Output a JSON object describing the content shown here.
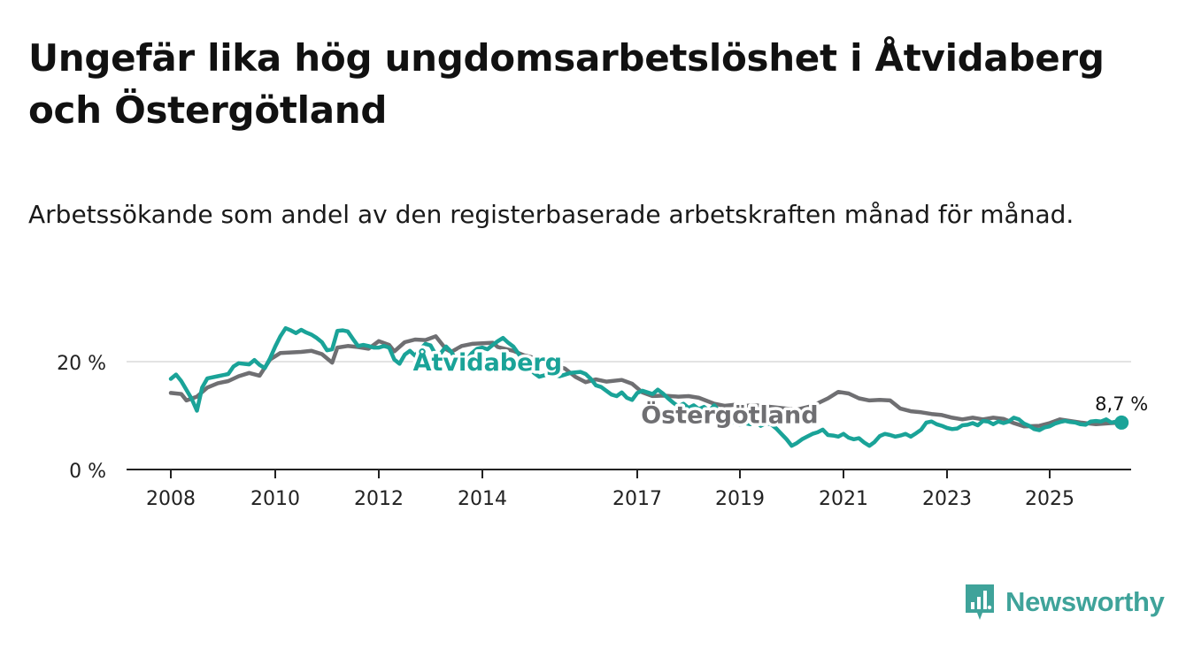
{
  "title": "Ungefär lika hög ungdomsarbetslöshet i Åtvidaberg och Östergötland",
  "subtitle": "Arbetssökande som andel av den registerbaserade arbetskraften månad för månad.",
  "brand": {
    "name": "Newsworthy",
    "color": "#3fa39a",
    "icon": "newsworthy-bar-chart-icon"
  },
  "chart_data": {
    "type": "line",
    "x_range": [
      2007.2,
      2026.5
    ],
    "ylim": [
      0,
      30
    ],
    "yticks": [
      {
        "value": 0,
        "label": "0 %"
      },
      {
        "value": 20,
        "label": "20 %"
      }
    ],
    "xticks": [
      {
        "value": 2008,
        "label": "2008"
      },
      {
        "value": 2010,
        "label": "2010"
      },
      {
        "value": 2012,
        "label": "2012"
      },
      {
        "value": 2014,
        "label": "2014"
      },
      {
        "value": 2017,
        "label": "2017"
      },
      {
        "value": 2019,
        "label": "2019"
      },
      {
        "value": 2021,
        "label": "2021"
      },
      {
        "value": 2023,
        "label": "2023"
      },
      {
        "value": 2025,
        "label": "2025"
      }
    ],
    "gridlines": [
      20
    ],
    "series": [
      {
        "name": "Östergötland",
        "color": "#6f6f72",
        "label_at": [
          2018.8,
          10.4
        ],
        "points": [
          [
            2008.0,
            14.2
          ],
          [
            2008.2,
            14.0
          ],
          [
            2008.3,
            12.8
          ],
          [
            2008.5,
            13.5
          ],
          [
            2008.7,
            15.2
          ],
          [
            2008.9,
            16.0
          ],
          [
            2009.1,
            16.4
          ],
          [
            2009.3,
            17.3
          ],
          [
            2009.5,
            17.9
          ],
          [
            2009.7,
            17.4
          ],
          [
            2009.9,
            20.4
          ],
          [
            2010.1,
            21.6
          ],
          [
            2010.3,
            21.7
          ],
          [
            2010.5,
            21.8
          ],
          [
            2010.7,
            22.0
          ],
          [
            2010.9,
            21.4
          ],
          [
            2011.1,
            19.8
          ],
          [
            2011.2,
            22.6
          ],
          [
            2011.4,
            22.9
          ],
          [
            2011.6,
            22.7
          ],
          [
            2011.8,
            22.4
          ],
          [
            2012.0,
            23.8
          ],
          [
            2012.2,
            23.1
          ],
          [
            2012.3,
            21.9
          ],
          [
            2012.5,
            23.6
          ],
          [
            2012.7,
            24.1
          ],
          [
            2012.9,
            24.0
          ],
          [
            2013.1,
            24.7
          ],
          [
            2013.3,
            22.3
          ],
          [
            2013.4,
            21.8
          ],
          [
            2013.6,
            22.9
          ],
          [
            2013.8,
            23.3
          ],
          [
            2014.0,
            23.4
          ],
          [
            2014.2,
            23.5
          ],
          [
            2014.3,
            22.7
          ],
          [
            2014.6,
            22.0
          ],
          [
            2014.8,
            21.2
          ],
          [
            2015.0,
            20.7
          ],
          [
            2015.3,
            19.7
          ],
          [
            2015.6,
            18.7
          ],
          [
            2015.8,
            17.2
          ],
          [
            2016.0,
            16.2
          ],
          [
            2016.2,
            16.7
          ],
          [
            2016.4,
            16.3
          ],
          [
            2016.7,
            16.6
          ],
          [
            2016.9,
            15.9
          ],
          [
            2017.1,
            14.3
          ],
          [
            2017.3,
            13.6
          ],
          [
            2017.5,
            13.7
          ],
          [
            2017.8,
            13.5
          ],
          [
            2018.0,
            13.6
          ],
          [
            2018.2,
            13.3
          ],
          [
            2018.5,
            12.2
          ],
          [
            2018.7,
            11.8
          ],
          [
            2018.9,
            12.0
          ],
          [
            2019.1,
            11.8
          ],
          [
            2019.3,
            11.9
          ],
          [
            2019.6,
            11.6
          ],
          [
            2019.8,
            11.4
          ],
          [
            2020.1,
            11.1
          ],
          [
            2020.4,
            11.8
          ],
          [
            2020.7,
            13.2
          ],
          [
            2020.9,
            14.4
          ],
          [
            2021.1,
            14.1
          ],
          [
            2021.3,
            13.2
          ],
          [
            2021.5,
            12.8
          ],
          [
            2021.7,
            12.9
          ],
          [
            2021.9,
            12.8
          ],
          [
            2022.1,
            11.3
          ],
          [
            2022.3,
            10.8
          ],
          [
            2022.5,
            10.6
          ],
          [
            2022.7,
            10.3
          ],
          [
            2022.9,
            10.1
          ],
          [
            2023.1,
            9.6
          ],
          [
            2023.3,
            9.3
          ],
          [
            2023.5,
            9.6
          ],
          [
            2023.7,
            9.3
          ],
          [
            2023.9,
            9.6
          ],
          [
            2024.1,
            9.4
          ],
          [
            2024.3,
            8.6
          ],
          [
            2024.5,
            8.0
          ],
          [
            2024.8,
            8.1
          ],
          [
            2025.0,
            8.6
          ],
          [
            2025.2,
            9.3
          ],
          [
            2025.4,
            9.0
          ],
          [
            2025.6,
            8.7
          ],
          [
            2025.9,
            8.4
          ],
          [
            2026.2,
            8.6
          ],
          [
            2026.4,
            8.7
          ]
        ]
      },
      {
        "name": "Åtvidaberg",
        "color": "#1aa398",
        "label_at": [
          2014.1,
          20.2
        ],
        "end_label": "8,7 %",
        "points": [
          [
            2008.0,
            16.8
          ],
          [
            2008.1,
            17.6
          ],
          [
            2008.2,
            16.4
          ],
          [
            2008.4,
            13.1
          ],
          [
            2008.5,
            10.9
          ],
          [
            2008.6,
            15.2
          ],
          [
            2008.7,
            16.9
          ],
          [
            2008.9,
            17.3
          ],
          [
            2009.1,
            17.7
          ],
          [
            2009.2,
            19.1
          ],
          [
            2009.3,
            19.7
          ],
          [
            2009.5,
            19.5
          ],
          [
            2009.6,
            20.3
          ],
          [
            2009.7,
            19.4
          ],
          [
            2009.8,
            18.8
          ],
          [
            2009.9,
            20.6
          ],
          [
            2010.0,
            22.8
          ],
          [
            2010.1,
            24.7
          ],
          [
            2010.2,
            26.2
          ],
          [
            2010.3,
            25.8
          ],
          [
            2010.4,
            25.3
          ],
          [
            2010.5,
            25.9
          ],
          [
            2010.6,
            25.4
          ],
          [
            2010.7,
            25.0
          ],
          [
            2010.8,
            24.4
          ],
          [
            2010.9,
            23.6
          ],
          [
            2011.0,
            22.1
          ],
          [
            2011.1,
            22.3
          ],
          [
            2011.2,
            25.7
          ],
          [
            2011.3,
            25.8
          ],
          [
            2011.4,
            25.6
          ],
          [
            2011.5,
            24.2
          ],
          [
            2011.6,
            22.9
          ],
          [
            2011.7,
            23.1
          ],
          [
            2011.8,
            22.9
          ],
          [
            2011.9,
            22.6
          ],
          [
            2012.0,
            22.6
          ],
          [
            2012.1,
            22.9
          ],
          [
            2012.2,
            22.6
          ],
          [
            2012.3,
            20.4
          ],
          [
            2012.4,
            19.6
          ],
          [
            2012.5,
            21.3
          ],
          [
            2012.6,
            22.0
          ],
          [
            2012.7,
            21.1
          ],
          [
            2012.8,
            22.3
          ],
          [
            2012.9,
            23.3
          ],
          [
            2013.0,
            23.0
          ],
          [
            2013.1,
            21.3
          ],
          [
            2013.2,
            21.6
          ],
          [
            2013.3,
            22.8
          ],
          [
            2013.4,
            21.8
          ],
          [
            2013.5,
            20.2
          ],
          [
            2013.6,
            18.6
          ],
          [
            2013.7,
            20.4
          ],
          [
            2013.8,
            21.6
          ],
          [
            2013.9,
            22.4
          ],
          [
            2014.0,
            22.6
          ],
          [
            2014.1,
            22.3
          ],
          [
            2014.2,
            23.1
          ],
          [
            2014.3,
            23.8
          ],
          [
            2014.4,
            24.4
          ],
          [
            2014.5,
            23.5
          ],
          [
            2014.6,
            22.8
          ],
          [
            2014.7,
            21.5
          ],
          [
            2014.8,
            20.0
          ],
          [
            2014.9,
            19.0
          ],
          [
            2015.0,
            17.9
          ],
          [
            2015.1,
            17.2
          ],
          [
            2015.3,
            17.7
          ],
          [
            2015.5,
            17.3
          ],
          [
            2015.7,
            17.9
          ],
          [
            2015.9,
            18.1
          ],
          [
            2016.0,
            17.7
          ],
          [
            2016.1,
            16.8
          ],
          [
            2016.2,
            15.6
          ],
          [
            2016.3,
            15.3
          ],
          [
            2016.4,
            14.6
          ],
          [
            2016.5,
            13.9
          ],
          [
            2016.6,
            13.6
          ],
          [
            2016.7,
            14.3
          ],
          [
            2016.8,
            13.3
          ],
          [
            2016.9,
            12.9
          ],
          [
            2017.0,
            14.2
          ],
          [
            2017.1,
            14.6
          ],
          [
            2017.2,
            14.3
          ],
          [
            2017.3,
            14.0
          ],
          [
            2017.4,
            14.8
          ],
          [
            2017.5,
            14.1
          ],
          [
            2017.6,
            13.2
          ],
          [
            2017.7,
            12.4
          ],
          [
            2017.8,
            11.7
          ],
          [
            2017.9,
            12.2
          ],
          [
            2018.0,
            11.4
          ],
          [
            2018.1,
            11.9
          ],
          [
            2018.2,
            11.2
          ],
          [
            2018.3,
            11.6
          ],
          [
            2018.4,
            10.9
          ],
          [
            2018.5,
            11.9
          ],
          [
            2018.6,
            10.7
          ],
          [
            2018.7,
            9.9
          ],
          [
            2018.8,
            8.6
          ],
          [
            2018.9,
            8.8
          ],
          [
            2019.0,
            8.3
          ],
          [
            2019.1,
            8.6
          ],
          [
            2019.2,
            8.4
          ],
          [
            2019.3,
            9.1
          ],
          [
            2019.4,
            8.1
          ],
          [
            2019.5,
            8.6
          ],
          [
            2019.6,
            8.4
          ],
          [
            2019.7,
            7.6
          ],
          [
            2019.8,
            6.6
          ],
          [
            2019.9,
            5.6
          ],
          [
            2020.0,
            4.4
          ],
          [
            2020.1,
            4.9
          ],
          [
            2020.2,
            5.6
          ],
          [
            2020.3,
            6.1
          ],
          [
            2020.4,
            6.6
          ],
          [
            2020.5,
            6.9
          ],
          [
            2020.6,
            7.4
          ],
          [
            2020.7,
            6.4
          ],
          [
            2020.8,
            6.3
          ],
          [
            2020.9,
            6.1
          ],
          [
            2021.0,
            6.6
          ],
          [
            2021.1,
            5.9
          ],
          [
            2021.2,
            5.6
          ],
          [
            2021.3,
            5.8
          ],
          [
            2021.4,
            5.0
          ],
          [
            2021.5,
            4.4
          ],
          [
            2021.6,
            5.1
          ],
          [
            2021.7,
            6.2
          ],
          [
            2021.8,
            6.6
          ],
          [
            2021.9,
            6.4
          ],
          [
            2022.0,
            6.1
          ],
          [
            2022.1,
            6.3
          ],
          [
            2022.2,
            6.6
          ],
          [
            2022.3,
            6.1
          ],
          [
            2022.4,
            6.7
          ],
          [
            2022.5,
            7.4
          ],
          [
            2022.6,
            8.7
          ],
          [
            2022.7,
            8.9
          ],
          [
            2022.8,
            8.4
          ],
          [
            2022.9,
            8.1
          ],
          [
            2023.0,
            7.7
          ],
          [
            2023.1,
            7.5
          ],
          [
            2023.2,
            7.6
          ],
          [
            2023.3,
            8.2
          ],
          [
            2023.4,
            8.3
          ],
          [
            2023.5,
            8.6
          ],
          [
            2023.6,
            8.2
          ],
          [
            2023.7,
            9.0
          ],
          [
            2023.8,
            8.9
          ],
          [
            2023.9,
            8.4
          ],
          [
            2024.0,
            8.9
          ],
          [
            2024.1,
            8.6
          ],
          [
            2024.2,
            8.9
          ],
          [
            2024.3,
            9.6
          ],
          [
            2024.4,
            9.3
          ],
          [
            2024.5,
            8.5
          ],
          [
            2024.6,
            8.1
          ],
          [
            2024.7,
            7.5
          ],
          [
            2024.8,
            7.3
          ],
          [
            2024.9,
            7.8
          ],
          [
            2025.0,
            8.0
          ],
          [
            2025.1,
            8.5
          ],
          [
            2025.2,
            8.8
          ],
          [
            2025.3,
            9.0
          ],
          [
            2025.4,
            8.8
          ],
          [
            2025.5,
            8.7
          ],
          [
            2025.6,
            8.4
          ],
          [
            2025.7,
            8.3
          ],
          [
            2025.8,
            8.9
          ],
          [
            2025.9,
            9.0
          ],
          [
            2026.0,
            8.9
          ],
          [
            2026.1,
            9.3
          ],
          [
            2026.2,
            8.7
          ],
          [
            2026.3,
            8.9
          ],
          [
            2026.4,
            8.7
          ]
        ]
      }
    ]
  }
}
